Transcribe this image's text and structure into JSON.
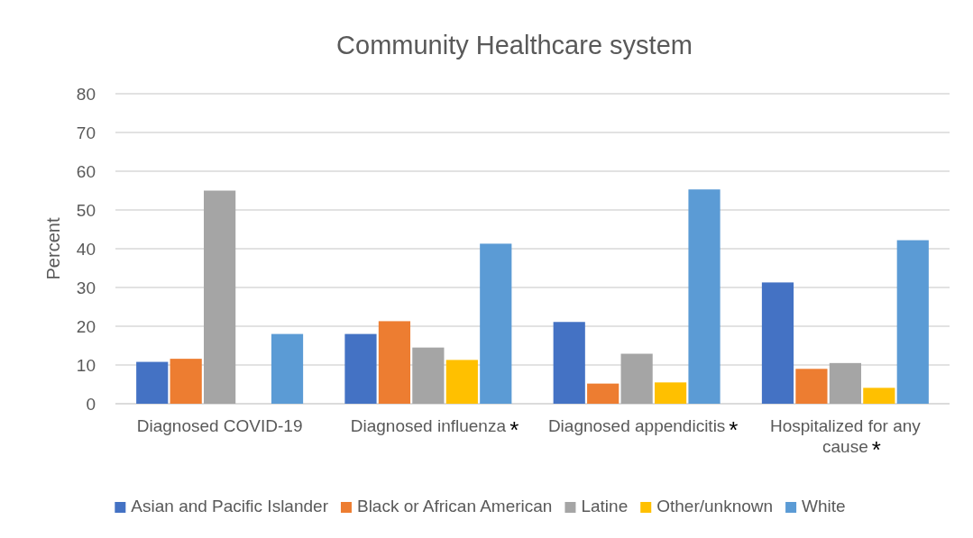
{
  "chart_data": {
    "type": "bar",
    "title": "Community Healthcare system",
    "ylabel": "Percent",
    "categories": [
      "Diagnosed COVID-19",
      "Diagnosed influenza",
      "Diagnosed appendicitis",
      "Hospitalized for any cause"
    ],
    "series": [
      {
        "name": "Asian and Pacific Islander",
        "color": "#4472c4",
        "values": [
          10.8,
          18,
          21.1,
          31.3
        ]
      },
      {
        "name": "Black or African American",
        "color": "#ed7d31",
        "values": [
          11.6,
          21.3,
          5.2,
          9
        ]
      },
      {
        "name": "Latine",
        "color": "#a5a5a5",
        "values": [
          55,
          14.5,
          12.9,
          10.5
        ]
      },
      {
        "name": "Other/unknown",
        "color": "#ffc000",
        "values": [
          null,
          11.3,
          5.5,
          4.1
        ]
      },
      {
        "name": "White",
        "color": "#5b9bd5",
        "values": [
          18,
          41.3,
          55.3,
          42.2
        ]
      }
    ],
    "ylim": [
      0,
      80
    ],
    "yticks": [
      0,
      10,
      20,
      30,
      40,
      50,
      60,
      70,
      80
    ],
    "grid": "y",
    "legend": "bottom",
    "annotations": [
      "*",
      "*",
      "*"
    ]
  }
}
